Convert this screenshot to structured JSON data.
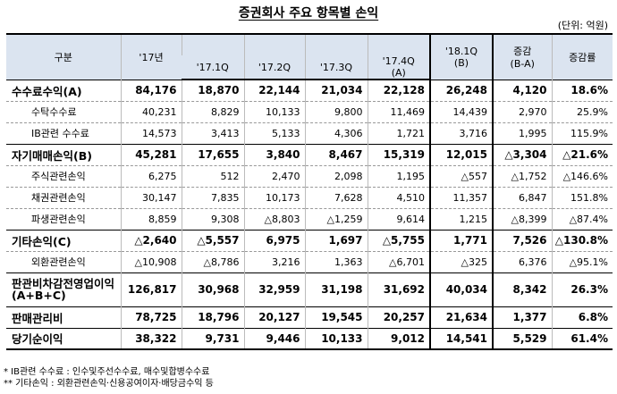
{
  "title": "증권회사 주요 항목별 손익",
  "unit": "(단위: 억원)",
  "header": {
    "category": "구분",
    "y17": "'17년",
    "q1": "'17.1Q",
    "q2": "'17.2Q",
    "q3": "'17.3Q",
    "q4a": "'17.4Q",
    "q4b": "(A)",
    "q18a": "'18.1Q",
    "q18b": "(B)",
    "chg_a": "증감",
    "chg_b": "(B-A)",
    "rate": "증감률"
  },
  "rows": [
    {
      "label": "수수료수익(A)",
      "y17": "84,176",
      "q1": "18,870",
      "q2": "22,144",
      "q3": "21,034",
      "q4": "22,128",
      "q18": "26,248",
      "chg": "4,120",
      "rate": "18.6%"
    },
    {
      "label": "수탁수수료",
      "y17": "40,231",
      "q1": "8,829",
      "q2": "10,133",
      "q3": "9,800",
      "q4": "11,469",
      "q18": "14,439",
      "chg": "2,970",
      "rate": "25.9%"
    },
    {
      "label": "IB관련 수수료",
      "y17": "14,573",
      "q1": "3,413",
      "q2": "5,133",
      "q3": "4,306",
      "q4": "1,721",
      "q18": "3,716",
      "chg": "1,995",
      "rate": "115.9%"
    },
    {
      "label": "자기매매손익(B)",
      "y17": "45,281",
      "q1": "17,655",
      "q2": "3,840",
      "q3": "8,467",
      "q4": "15,319",
      "q18": "12,015",
      "chg": "△3,304",
      "rate": "△21.6%"
    },
    {
      "label": "주식관련손익",
      "y17": "6,275",
      "q1": "512",
      "q2": "2,470",
      "q3": "2,098",
      "q4": "1,195",
      "q18": "△557",
      "chg": "△1,752",
      "rate": "△146.6%"
    },
    {
      "label": "채권관련손익",
      "y17": "30,147",
      "q1": "7,835",
      "q2": "10,173",
      "q3": "7,628",
      "q4": "4,510",
      "q18": "11,357",
      "chg": "6,847",
      "rate": "151.8%"
    },
    {
      "label": "파생관련손익",
      "y17": "8,859",
      "q1": "9,308",
      "q2": "△8,803",
      "q3": "△1,259",
      "q4": "9,614",
      "q18": "1,215",
      "chg": "△8,399",
      "rate": "△87.4%"
    },
    {
      "label": "기타손익(C)",
      "y17": "△2,640",
      "q1": "△5,557",
      "q2": "6,975",
      "q3": "1,697",
      "q4": "△5,755",
      "q18": "1,771",
      "chg": "7,526",
      "rate": "△130.8%"
    },
    {
      "label": "외환관련손익",
      "y17": "△10,908",
      "q1": "△8,786",
      "q2": "3,216",
      "q3": "1,363",
      "q4": "△6,701",
      "q18": "△325",
      "chg": "6,376",
      "rate": "△95.1%"
    },
    {
      "label": "판관비차감전영업이익(A+B+C)",
      "y17": "126,817",
      "q1": "30,968",
      "q2": "32,959",
      "q3": "31,198",
      "q4": "31,692",
      "q18": "40,034",
      "chg": "8,342",
      "rate": "26.3%"
    },
    {
      "label": "판매관리비",
      "y17": "78,725",
      "q1": "18,796",
      "q2": "20,127",
      "q3": "19,545",
      "q4": "20,257",
      "q18": "21,634",
      "chg": "1,377",
      "rate": "6.8%"
    },
    {
      "label": "당기순이익",
      "y17": "38,322",
      "q1": "9,731",
      "q2": "9,446",
      "q3": "10,133",
      "q4": "9,012",
      "q18": "14,541",
      "chg": "5,529",
      "rate": "61.4%"
    }
  ],
  "notes": [
    "* IB관련 수수료 : 인수및주선수수료, 매수및합병수수료",
    "** 기타손익 : 외환관련손익·신용공여이자·배당금수익 등"
  ]
}
